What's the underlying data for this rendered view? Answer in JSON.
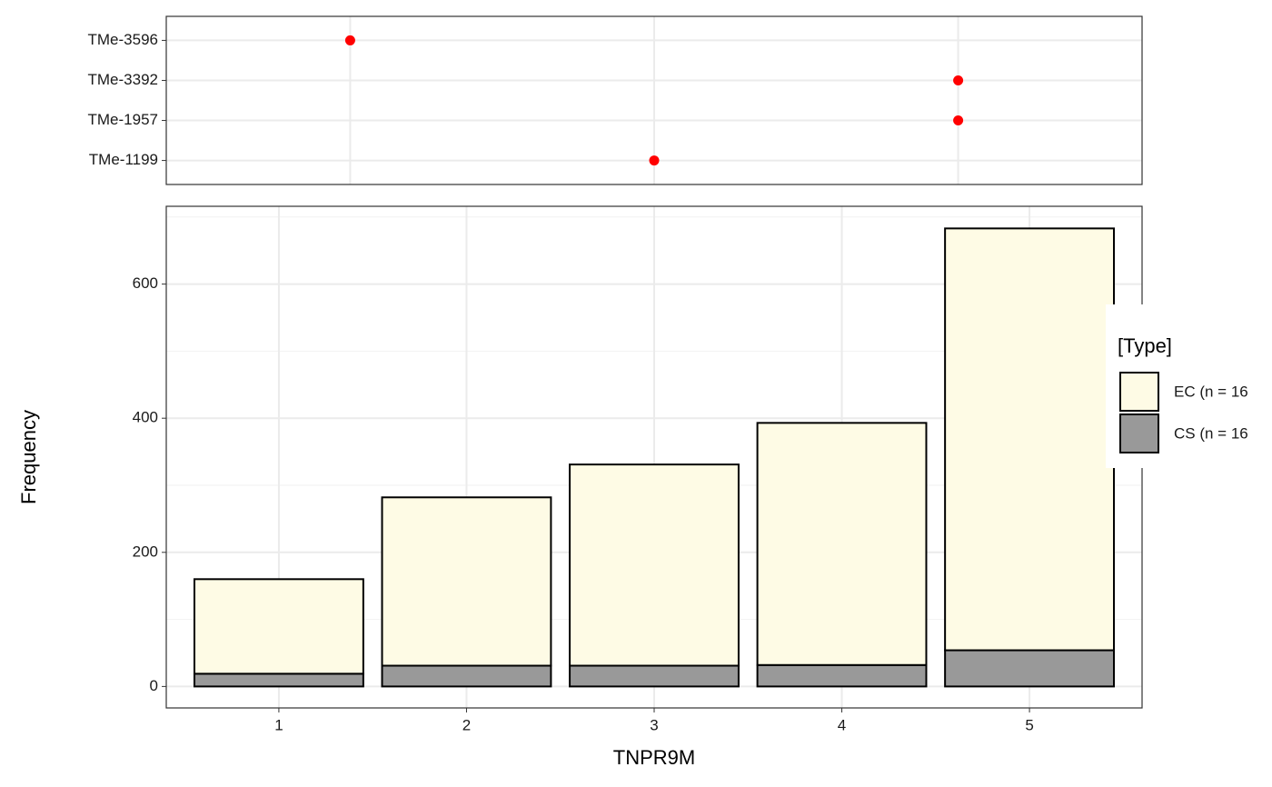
{
  "chart_data": [
    {
      "type": "dot",
      "categories": [
        "TMe-3596",
        "TMe-3392",
        "TMe-1957",
        "TMe-1199"
      ],
      "values": [
        1.38,
        4.62,
        4.62,
        3.0
      ],
      "color": "#ff0000",
      "xlim": [
        0.4,
        5.6
      ],
      "grid": true
    },
    {
      "type": "bar",
      "stacked": true,
      "x_label": "TNPR9M",
      "y_label": "Frequency",
      "categories": [
        "1",
        "2",
        "3",
        "4",
        "5"
      ],
      "series": [
        {
          "name": "CS (n = 16",
          "color": "#999999",
          "values": [
            19,
            31,
            31,
            32,
            54
          ]
        },
        {
          "name": "EC (n = 16",
          "color": "#fefbe5",
          "values": [
            141,
            251,
            300,
            361,
            629
          ]
        }
      ],
      "ylim": [
        -32,
        716
      ],
      "yticks": [
        0,
        200,
        400,
        600
      ],
      "yminor": [
        100,
        300,
        500,
        700
      ],
      "grid": true,
      "legend_title": "[Type]",
      "legend": "right"
    }
  ]
}
